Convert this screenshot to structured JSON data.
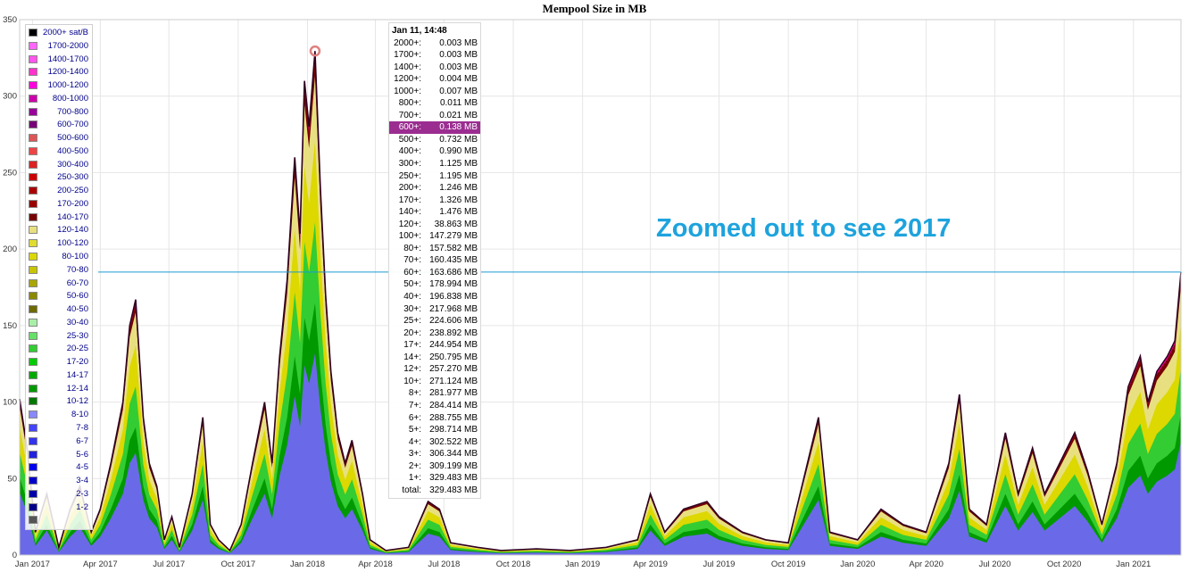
{
  "title": "Mempool Size in MB",
  "annotation": "Zoomed out to see 2017",
  "colors": {
    "grid": "#e6e6e6",
    "hline": "#1a9bd0",
    "outline": "#300020",
    "marker": "#e08080",
    "annotation": "#1ea3dd"
  },
  "chart_data": {
    "type": "area",
    "title": "Mempool Size in MB",
    "ylim": [
      0,
      350
    ],
    "xlim": [
      "2016-12-15",
      "2021-03-05"
    ],
    "y_ticks": [
      0,
      50,
      100,
      150,
      200,
      250,
      300,
      350
    ],
    "x_ticks": [
      {
        "label": "Jan 2017",
        "date": "2017-01-01"
      },
      {
        "label": "Apr 2017",
        "date": "2017-04-01"
      },
      {
        "label": "Jul 2017",
        "date": "2017-07-01"
      },
      {
        "label": "Oct 2017",
        "date": "2017-10-01"
      },
      {
        "label": "Jan 2018",
        "date": "2018-01-01"
      },
      {
        "label": "Apr 2018",
        "date": "2018-04-01"
      },
      {
        "label": "Jul 2018",
        "date": "2018-07-01"
      },
      {
        "label": "Oct 2018",
        "date": "2018-10-01"
      },
      {
        "label": "Jan 2019",
        "date": "2019-01-01"
      },
      {
        "label": "Apr 2019",
        "date": "2019-04-01"
      },
      {
        "label": "Jul 2019",
        "date": "2019-07-01"
      },
      {
        "label": "Oct 2019",
        "date": "2019-10-01"
      },
      {
        "label": "Jan 2020",
        "date": "2020-01-01"
      },
      {
        "label": "Apr 2020",
        "date": "2020-04-01"
      },
      {
        "label": "Jul 2020",
        "date": "2020-07-01"
      },
      {
        "label": "Oct 2020",
        "date": "2020-10-01"
      },
      {
        "label": "Jan 2021",
        "date": "2021-01-01"
      }
    ],
    "reference_line_y": 185,
    "highlight_point": {
      "date": "2018-01-11",
      "y": 329.483
    },
    "total_series": [
      [
        "2016-12-15",
        102
      ],
      [
        "2016-12-25",
        70
      ],
      [
        "2017-01-05",
        15
      ],
      [
        "2017-01-20",
        40
      ],
      [
        "2017-02-05",
        5
      ],
      [
        "2017-02-20",
        30
      ],
      [
        "2017-03-05",
        45
      ],
      [
        "2017-03-20",
        15
      ],
      [
        "2017-04-01",
        30
      ],
      [
        "2017-04-15",
        60
      ],
      [
        "2017-05-01",
        100
      ],
      [
        "2017-05-10",
        150
      ],
      [
        "2017-05-18",
        167
      ],
      [
        "2017-05-28",
        90
      ],
      [
        "2017-06-05",
        60
      ],
      [
        "2017-06-15",
        45
      ],
      [
        "2017-06-25",
        10
      ],
      [
        "2017-07-05",
        25
      ],
      [
        "2017-07-15",
        5
      ],
      [
        "2017-08-01",
        40
      ],
      [
        "2017-08-15",
        90
      ],
      [
        "2017-08-25",
        20
      ],
      [
        "2017-09-05",
        10
      ],
      [
        "2017-09-20",
        3
      ],
      [
        "2017-10-05",
        20
      ],
      [
        "2017-10-20",
        60
      ],
      [
        "2017-11-05",
        100
      ],
      [
        "2017-11-15",
        60
      ],
      [
        "2017-11-25",
        130
      ],
      [
        "2017-12-05",
        180
      ],
      [
        "2017-12-15",
        260
      ],
      [
        "2017-12-22",
        210
      ],
      [
        "2017-12-28",
        310
      ],
      [
        "2018-01-03",
        280
      ],
      [
        "2018-01-11",
        329.483
      ],
      [
        "2018-01-18",
        240
      ],
      [
        "2018-01-25",
        170
      ],
      [
        "2018-02-01",
        120
      ],
      [
        "2018-02-10",
        80
      ],
      [
        "2018-02-20",
        60
      ],
      [
        "2018-03-01",
        75
      ],
      [
        "2018-03-15",
        40
      ],
      [
        "2018-03-25",
        10
      ],
      [
        "2018-04-15",
        3
      ],
      [
        "2018-05-15",
        5
      ],
      [
        "2018-06-10",
        35
      ],
      [
        "2018-06-25",
        30
      ],
      [
        "2018-07-10",
        8
      ],
      [
        "2018-08-15",
        5
      ],
      [
        "2018-09-15",
        3
      ],
      [
        "2018-11-01",
        4
      ],
      [
        "2018-12-15",
        3
      ],
      [
        "2019-02-01",
        5
      ],
      [
        "2019-03-15",
        10
      ],
      [
        "2019-04-01",
        40
      ],
      [
        "2019-04-20",
        15
      ],
      [
        "2019-05-15",
        30
      ],
      [
        "2019-06-15",
        35
      ],
      [
        "2019-07-01",
        25
      ],
      [
        "2019-08-01",
        15
      ],
      [
        "2019-09-01",
        10
      ],
      [
        "2019-10-01",
        8
      ],
      [
        "2019-11-10",
        90
      ],
      [
        "2019-11-25",
        15
      ],
      [
        "2020-01-01",
        10
      ],
      [
        "2020-02-01",
        30
      ],
      [
        "2020-03-01",
        20
      ],
      [
        "2020-04-01",
        15
      ],
      [
        "2020-05-01",
        60
      ],
      [
        "2020-05-15",
        105
      ],
      [
        "2020-05-28",
        30
      ],
      [
        "2020-06-20",
        20
      ],
      [
        "2020-07-15",
        80
      ],
      [
        "2020-08-01",
        40
      ],
      [
        "2020-08-20",
        70
      ],
      [
        "2020-09-05",
        40
      ],
      [
        "2020-09-25",
        60
      ],
      [
        "2020-10-15",
        80
      ],
      [
        "2020-11-01",
        55
      ],
      [
        "2020-11-20",
        20
      ],
      [
        "2020-12-10",
        60
      ],
      [
        "2020-12-25",
        110
      ],
      [
        "2021-01-10",
        130
      ],
      [
        "2021-01-20",
        100
      ],
      [
        "2021-02-01",
        120
      ],
      [
        "2021-02-15",
        130
      ],
      [
        "2021-02-25",
        140
      ],
      [
        "2021-03-05",
        185
      ]
    ]
  },
  "legend": [
    {
      "label": "2000+ sat/B",
      "color": "#000000"
    },
    {
      "label": "1700-2000",
      "color": "#ff66ff"
    },
    {
      "label": "1400-1700",
      "color": "#ff55ee"
    },
    {
      "label": "1200-1400",
      "color": "#ff33cc"
    },
    {
      "label": "1000-1200",
      "color": "#ff00dd"
    },
    {
      "label": "800-1000",
      "color": "#cc00aa"
    },
    {
      "label": "700-800",
      "color": "#990099"
    },
    {
      "label": "600-700",
      "color": "#770077"
    },
    {
      "label": "500-600",
      "color": "#dd5555"
    },
    {
      "label": "400-500",
      "color": "#ee4444"
    },
    {
      "label": "300-400",
      "color": "#dd2222"
    },
    {
      "label": "250-300",
      "color": "#cc0000"
    },
    {
      "label": "200-250",
      "color": "#aa0000"
    },
    {
      "label": "170-200",
      "color": "#990000"
    },
    {
      "label": "140-170",
      "color": "#770000"
    },
    {
      "label": "120-140",
      "color": "#e8e080"
    },
    {
      "label": "100-120",
      "color": "#e0dc30"
    },
    {
      "label": "80-100",
      "color": "#dcd800"
    },
    {
      "label": "70-80",
      "color": "#c8c400"
    },
    {
      "label": "60-70",
      "color": "#aaa600"
    },
    {
      "label": "50-60",
      "color": "#8c8800"
    },
    {
      "label": "40-50",
      "color": "#6e6a00"
    },
    {
      "label": "30-40",
      "color": "#a8f0a8"
    },
    {
      "label": "25-30",
      "color": "#66e066"
    },
    {
      "label": "20-25",
      "color": "#33cc33"
    },
    {
      "label": "17-20",
      "color": "#00cc00"
    },
    {
      "label": "14-17",
      "color": "#00aa00"
    },
    {
      "label": "12-14",
      "color": "#009900"
    },
    {
      "label": "10-12",
      "color": "#007700"
    },
    {
      "label": "8-10",
      "color": "#8888ff"
    },
    {
      "label": "7-8",
      "color": "#4444ff"
    },
    {
      "label": "6-7",
      "color": "#3333ee"
    },
    {
      "label": "5-6",
      "color": "#2222dd"
    },
    {
      "label": "4-5",
      "color": "#0000ee"
    },
    {
      "label": "3-4",
      "color": "#0000cc"
    },
    {
      "label": "2-3",
      "color": "#0000aa"
    },
    {
      "label": "1-2",
      "color": "#000088"
    },
    {
      "label": "",
      "color": "#555555"
    }
  ],
  "tooltip": {
    "date": "Jan 11, 14:48",
    "rows": [
      {
        "key": "2000+:",
        "value": "0.003 MB"
      },
      {
        "key": "1700+:",
        "value": "0.003 MB"
      },
      {
        "key": "1400+:",
        "value": "0.003 MB"
      },
      {
        "key": "1200+:",
        "value": "0.004 MB"
      },
      {
        "key": "1000+:",
        "value": "0.007 MB"
      },
      {
        "key": "800+:",
        "value": "0.011 MB"
      },
      {
        "key": "700+:",
        "value": "0.021 MB"
      },
      {
        "key": "600+:",
        "value": "0.138 MB",
        "highlight": true
      },
      {
        "key": "500+:",
        "value": "0.732 MB"
      },
      {
        "key": "400+:",
        "value": "0.990 MB"
      },
      {
        "key": "300+:",
        "value": "1.125 MB"
      },
      {
        "key": "250+:",
        "value": "1.195 MB"
      },
      {
        "key": "200+:",
        "value": "1.246 MB"
      },
      {
        "key": "170+:",
        "value": "1.326 MB"
      },
      {
        "key": "140+:",
        "value": "1.476 MB"
      },
      {
        "key": "120+:",
        "value": "38.863 MB"
      },
      {
        "key": "100+:",
        "value": "147.279 MB"
      },
      {
        "key": "80+:",
        "value": "157.582 MB"
      },
      {
        "key": "70+:",
        "value": "160.435 MB"
      },
      {
        "key": "60+:",
        "value": "163.686 MB"
      },
      {
        "key": "50+:",
        "value": "178.994 MB"
      },
      {
        "key": "40+:",
        "value": "196.838 MB"
      },
      {
        "key": "30+:",
        "value": "217.968 MB"
      },
      {
        "key": "25+:",
        "value": "224.606 MB"
      },
      {
        "key": "20+:",
        "value": "238.892 MB"
      },
      {
        "key": "17+:",
        "value": "244.954 MB"
      },
      {
        "key": "14+:",
        "value": "250.795 MB"
      },
      {
        "key": "12+:",
        "value": "257.270 MB"
      },
      {
        "key": "10+:",
        "value": "271.124 MB"
      },
      {
        "key": "8+:",
        "value": "281.977 MB"
      },
      {
        "key": "7+:",
        "value": "284.414 MB"
      },
      {
        "key": "6+:",
        "value": "288.755 MB"
      },
      {
        "key": "5+:",
        "value": "298.714 MB"
      },
      {
        "key": "4+:",
        "value": "302.522 MB"
      },
      {
        "key": "3+:",
        "value": "306.344 MB"
      },
      {
        "key": "2+:",
        "value": "309.199 MB"
      },
      {
        "key": "1+:",
        "value": "329.483 MB"
      },
      {
        "key": "total:",
        "value": "329.483 MB"
      }
    ]
  }
}
